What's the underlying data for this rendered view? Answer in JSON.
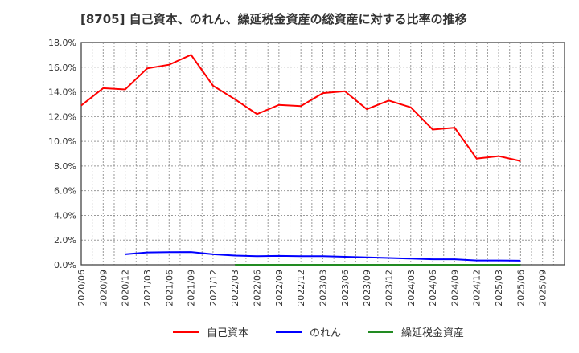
{
  "chart_data": {
    "type": "line",
    "title": "[8705]  自己資本、のれん、繰延税金資産の総資産に対する比率の推移",
    "xlabel": "",
    "ylabel": "",
    "ylim": [
      0,
      18
    ],
    "grid": true,
    "legend_position": "bottom",
    "x": [
      "2020/06",
      "2020/09",
      "2020/12",
      "2021/03",
      "2021/06",
      "2021/09",
      "2021/12",
      "2022/03",
      "2022/06",
      "2022/09",
      "2022/12",
      "2023/03",
      "2023/06",
      "2023/09",
      "2023/12",
      "2024/03",
      "2024/06",
      "2024/09",
      "2024/12",
      "2025/03",
      "2025/06",
      "2025/09"
    ],
    "yticks": [
      "0.0%",
      "2.0%",
      "4.0%",
      "6.0%",
      "8.0%",
      "10.0%",
      "12.0%",
      "14.0%",
      "16.0%",
      "18.0%"
    ],
    "series": [
      {
        "name": "自己資本",
        "color": "#ff0000",
        "values": [
          12.9,
          14.3,
          14.2,
          15.9,
          16.2,
          17.0,
          14.5,
          13.4,
          12.2,
          12.95,
          12.85,
          13.9,
          14.05,
          12.6,
          13.3,
          12.75,
          10.95,
          11.1,
          8.6,
          8.8,
          8.4,
          null
        ]
      },
      {
        "name": "のれん",
        "color": "#0000ff",
        "values": [
          null,
          null,
          0.85,
          1.0,
          1.02,
          1.03,
          0.85,
          0.75,
          0.7,
          0.72,
          0.7,
          0.7,
          0.65,
          0.6,
          0.55,
          0.5,
          0.45,
          0.45,
          0.35,
          0.35,
          0.33,
          null
        ]
      },
      {
        "name": "繰延税金資産",
        "color": "#228b22",
        "values": [
          null,
          null,
          null,
          null,
          null,
          null,
          null,
          0.0,
          0.0,
          0.0,
          0.0,
          0.0,
          0.0,
          0.0,
          0.0,
          0.0,
          0.0,
          0.0,
          0.0,
          0.0,
          0.0,
          null
        ]
      }
    ]
  }
}
